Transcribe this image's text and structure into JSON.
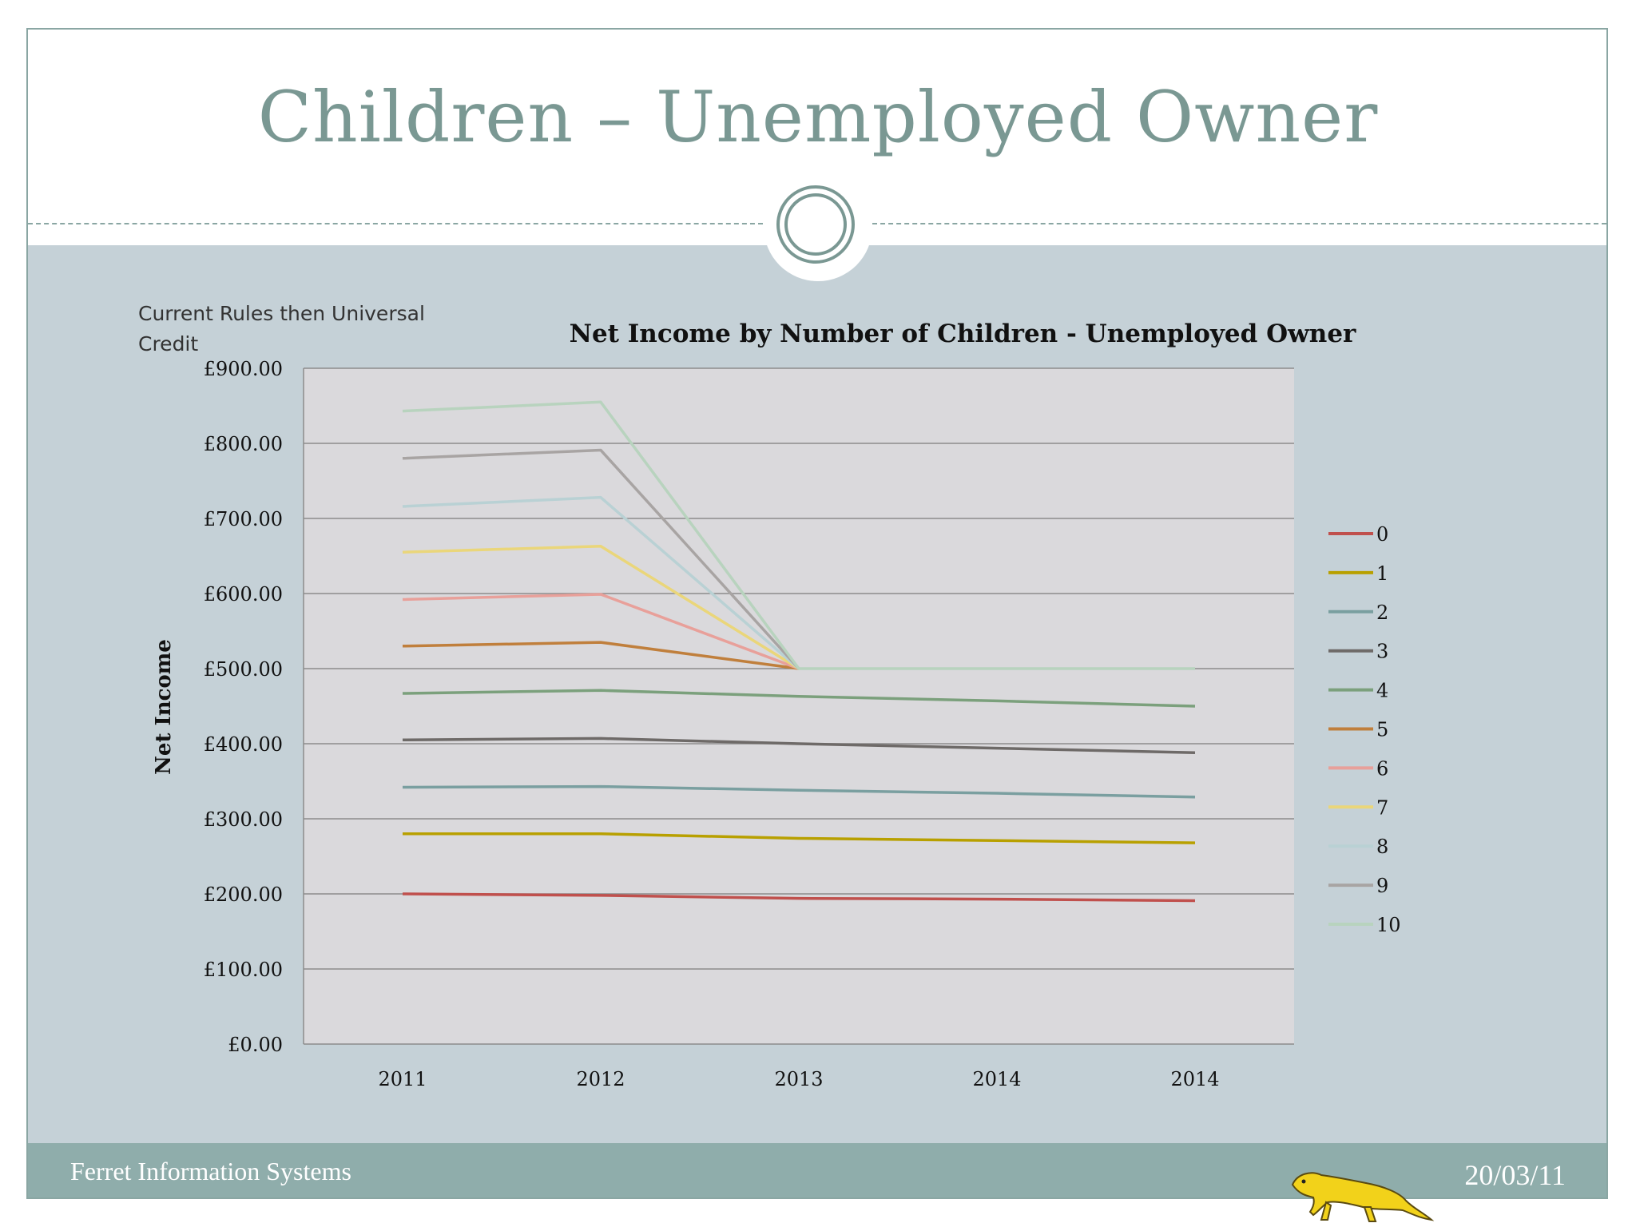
{
  "slide": {
    "title": "Children – Unemployed Owner",
    "note": "Current Rules then Universal Credit",
    "footer_org": "Ferret Information Systems",
    "footer_date": "20/03/11",
    "logo": "ferret-mascot"
  },
  "colors": {
    "frame": "#8aa6a3",
    "band": "#c5d1d7",
    "title": "#7a9893",
    "footer": "#8fadab",
    "plot_bg": "#dad9dc"
  },
  "chart_data": {
    "type": "line",
    "title": "Net Income by Number of Children - Unemployed Owner",
    "xlabel": "",
    "ylabel": "Net Income",
    "categories": [
      "2011",
      "2012",
      "2013",
      "2014",
      "2014"
    ],
    "ylim": [
      0,
      900
    ],
    "yticks": [
      "£0.00",
      "£100.00",
      "£200.00",
      "£300.00",
      "£400.00",
      "£500.00",
      "£600.00",
      "£700.00",
      "£800.00",
      "£900.00"
    ],
    "grid": true,
    "legend_position": "right",
    "series": [
      {
        "name": "0",
        "color": "#c0504d",
        "values": [
          200,
          198,
          194,
          193,
          191
        ]
      },
      {
        "name": "1",
        "color": "#b8a000",
        "values": [
          280,
          280,
          274,
          271,
          268
        ]
      },
      {
        "name": "2",
        "color": "#7a9fa0",
        "values": [
          342,
          343,
          338,
          334,
          329
        ]
      },
      {
        "name": "3",
        "color": "#6e6a68",
        "values": [
          405,
          407,
          400,
          394,
          388
        ]
      },
      {
        "name": "4",
        "color": "#7ba07c",
        "values": [
          467,
          471,
          463,
          457,
          450
        ]
      },
      {
        "name": "5",
        "color": "#c07f3c",
        "values": [
          530,
          535,
          500,
          null,
          null
        ]
      },
      {
        "name": "6",
        "color": "#e8a09a",
        "values": [
          592,
          599,
          500,
          null,
          null
        ]
      },
      {
        "name": "7",
        "color": "#ead67a",
        "values": [
          655,
          663,
          500,
          null,
          null
        ]
      },
      {
        "name": "8",
        "color": "#b9d1d4",
        "values": [
          716,
          728,
          500,
          null,
          null
        ]
      },
      {
        "name": "9",
        "color": "#a8a4a3",
        "values": [
          780,
          791,
          500,
          null,
          null
        ]
      },
      {
        "name": "10",
        "color": "#b8d3be",
        "values": [
          843,
          855,
          500,
          500,
          500
        ]
      }
    ]
  }
}
